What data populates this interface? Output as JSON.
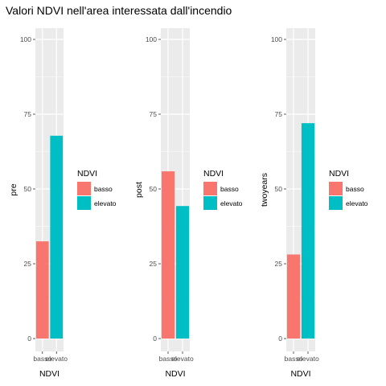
{
  "title": "Valori NDVI nell'area interessata dall'incendio",
  "colors": {
    "basso": "#F8766D",
    "elevato": "#00BFC4",
    "panel": "#EBEBEB",
    "grid": "#FFFFFF"
  },
  "chart_data": [
    {
      "type": "bar",
      "categories": [
        "basso",
        "elevato"
      ],
      "values": [
        32.5,
        67.8
      ],
      "xlabel": "NDVI",
      "ylabel": "pre",
      "ylim": [
        0,
        100
      ],
      "yticks": [
        0,
        25,
        50,
        75,
        100
      ],
      "legend": {
        "title": "NDVI",
        "entries": [
          "basso",
          "elevato"
        ],
        "placement": "right"
      }
    },
    {
      "type": "bar",
      "categories": [
        "basso",
        "elevato"
      ],
      "values": [
        55.9,
        44.3
      ],
      "xlabel": "NDVI",
      "ylabel": "post",
      "ylim": [
        0,
        100
      ],
      "yticks": [
        0,
        25,
        50,
        75,
        100
      ],
      "legend": {
        "title": "NDVI",
        "entries": [
          "basso",
          "elevato"
        ],
        "placement": "right"
      }
    },
    {
      "type": "bar",
      "categories": [
        "basso",
        "elevato"
      ],
      "values": [
        28.1,
        72.0
      ],
      "xlabel": "NDVI",
      "ylabel": "twoyears",
      "ylim": [
        0,
        100
      ],
      "yticks": [
        0,
        25,
        50,
        75,
        100
      ],
      "legend": {
        "title": "NDVI",
        "entries": [
          "basso",
          "elevato"
        ],
        "placement": "right"
      }
    }
  ]
}
